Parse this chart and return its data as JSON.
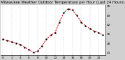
{
  "title": "Milwaukee Weather Outdoor Temperature per Hour (Last 24 Hours)",
  "hours": [
    0,
    1,
    2,
    3,
    4,
    5,
    6,
    7,
    8,
    9,
    10,
    11,
    12,
    13,
    14,
    15,
    16,
    17,
    18,
    19,
    20,
    21,
    22,
    23
  ],
  "temperatures": [
    31,
    30,
    29,
    28,
    27,
    25,
    23,
    21,
    22,
    26,
    31,
    34,
    36,
    44,
    51,
    54,
    53,
    49,
    44,
    41,
    39,
    37,
    36,
    34
  ],
  "line_color": "#cc0000",
  "marker_color": "#000000",
  "bg_color": "#d0d0d0",
  "plot_bg_color": "#ffffff",
  "grid_color": "#999999",
  "ylim": [
    19,
    57
  ],
  "ytick_vals": [
    21,
    28,
    35,
    42,
    49,
    56
  ],
  "xtick_vals": [
    0,
    2,
    4,
    6,
    8,
    10,
    12,
    14,
    16,
    18,
    20,
    22
  ],
  "title_fontsize": 3.8,
  "tick_fontsize": 3.2
}
